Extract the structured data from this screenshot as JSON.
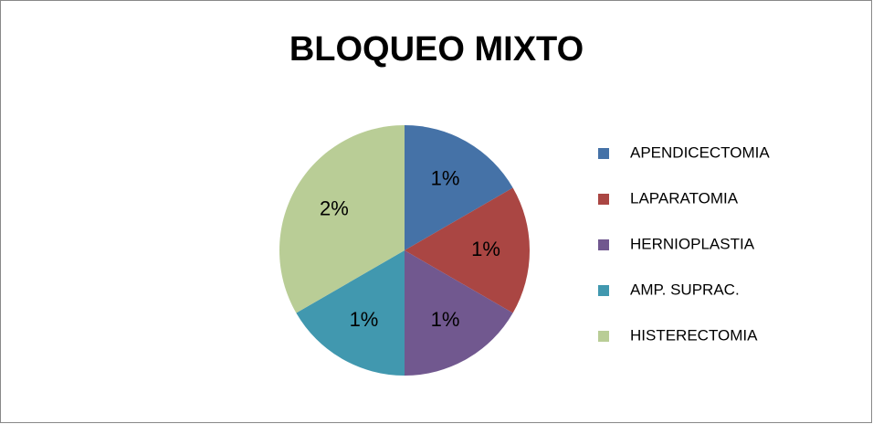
{
  "chart_data": {
    "type": "pie",
    "title": "BLOQUEO MIXTO",
    "categories": [
      "APENDICECTOMIA",
      "LAPARATOMIA",
      "HERNIOPLASTIA",
      "AMP. SUPRAC.",
      "HISTERECTOMIA"
    ],
    "values": [
      1,
      1,
      1,
      1,
      2
    ],
    "value_labels": [
      "1%",
      "1%",
      "1%",
      "1%",
      "2%"
    ],
    "colors": [
      "#4572a7",
      "#aa4643",
      "#71588f",
      "#4198af",
      "#b9cd96"
    ],
    "legend": "right"
  }
}
